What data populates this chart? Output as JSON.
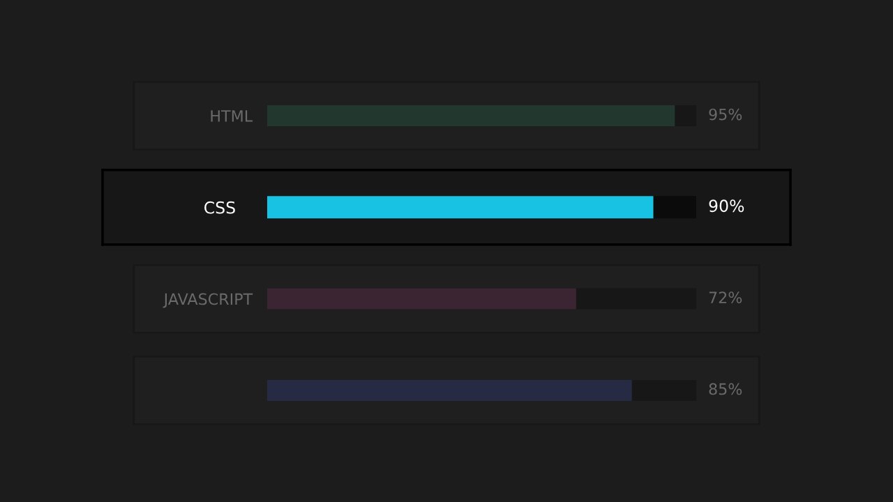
{
  "chart_data": {
    "type": "bar",
    "orientation": "horizontal",
    "categories": [
      "HTML",
      "CSS",
      "JAVASCRIPT",
      null
    ],
    "values": [
      95,
      90,
      72,
      85
    ],
    "colors": [
      "#22382e",
      "#17c2e2",
      "#3b2532",
      "#262a42"
    ],
    "value_labels": [
      "95%",
      "90%",
      "72%",
      "85%"
    ],
    "xlim": [
      0,
      100
    ],
    "tick_labels": "y"
  }
}
